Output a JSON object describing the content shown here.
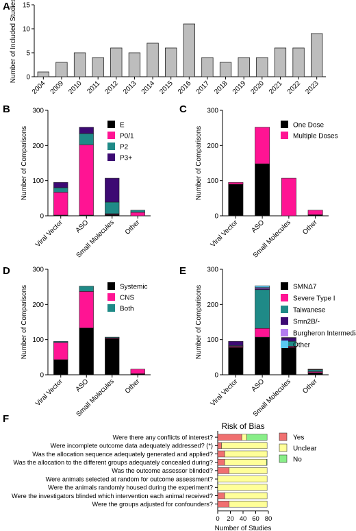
{
  "colors": {
    "grey": "#bdbdbd",
    "black": "#000000",
    "pink": "#ff1493",
    "teal": "#1f8a87",
    "indigo": "#3d0a73",
    "lavender": "#b37cf0",
    "skyblue": "#5ac8f0",
    "salmon": "#f07070",
    "yellow": "#ffff99",
    "lightgreen": "#88ee88"
  },
  "chart_data": [
    {
      "panel": "A",
      "type": "bar",
      "ylabel": "Number of Included Studies",
      "xlabel": "",
      "ylim": [
        0,
        15
      ],
      "yticks": [
        0,
        5,
        10,
        15
      ],
      "categories": [
        "2004",
        "2009",
        "2010",
        "2011",
        "2012",
        "2013",
        "2014",
        "2015",
        "2016",
        "2017",
        "2018",
        "2019",
        "2020",
        "2021",
        "2022",
        "2023"
      ],
      "values": [
        1,
        3,
        5,
        4,
        6,
        5,
        7,
        6,
        11,
        4,
        3,
        4,
        4,
        6,
        6,
        9
      ]
    },
    {
      "panel": "B",
      "type": "bar",
      "stacked": true,
      "ylabel": "Number of Comparisons",
      "ylim": [
        0,
        300
      ],
      "yticks": [
        0,
        100,
        200,
        300
      ],
      "categories": [
        "Viral Vector",
        "ASO",
        "Small Molecules",
        "Other"
      ],
      "series": [
        {
          "name": "E",
          "color": "#000000",
          "values": [
            2,
            2,
            4,
            0
          ]
        },
        {
          "name": "P0/1",
          "color": "#ff1493",
          "values": [
            65,
            200,
            2,
            10
          ]
        },
        {
          "name": "P2",
          "color": "#1f8a87",
          "values": [
            13,
            32,
            33,
            6
          ]
        },
        {
          "name": "P3+",
          "color": "#3d0a73",
          "values": [
            15,
            18,
            68,
            0
          ]
        }
      ],
      "legend": "top-right"
    },
    {
      "panel": "C",
      "type": "bar",
      "stacked": true,
      "ylabel": "Number of Comparisons",
      "ylim": [
        0,
        300
      ],
      "yticks": [
        0,
        100,
        200,
        300
      ],
      "categories": [
        "Viral Vector",
        "ASO",
        "Small Molecules",
        "Other"
      ],
      "series": [
        {
          "name": "One Dose",
          "color": "#000000",
          "values": [
            90,
            148,
            0,
            3
          ]
        },
        {
          "name": "Multiple Doses",
          "color": "#ff1493",
          "values": [
            5,
            104,
            107,
            13
          ]
        }
      ],
      "legend": "top-right"
    },
    {
      "panel": "D",
      "type": "bar",
      "stacked": true,
      "ylabel": "Number of Comparisons",
      "ylim": [
        0,
        300
      ],
      "yticks": [
        0,
        100,
        200,
        300
      ],
      "categories": [
        "Viral Vector",
        "ASO",
        "Small Molecules",
        "Other"
      ],
      "series": [
        {
          "name": "Systemic",
          "color": "#000000",
          "values": [
            43,
            133,
            103,
            3
          ]
        },
        {
          "name": "CNS",
          "color": "#ff1493",
          "values": [
            49,
            104,
            2,
            13
          ]
        },
        {
          "name": "Both",
          "color": "#1f8a87",
          "values": [
            3,
            15,
            2,
            0
          ]
        }
      ],
      "legend": "top-right"
    },
    {
      "panel": "E",
      "type": "bar",
      "stacked": true,
      "ylabel": "Number of Comparisons",
      "ylim": [
        0,
        300
      ],
      "yticks": [
        0,
        100,
        200,
        300
      ],
      "categories": [
        "Viral Vector",
        "ASO",
        "Small Molecules",
        "Other"
      ],
      "series": [
        {
          "name": "SMNΔ7",
          "color": "#000000",
          "values": [
            78,
            107,
            78,
            6
          ]
        },
        {
          "name": "Severe Type I",
          "color": "#ff1493",
          "values": [
            3,
            25,
            3,
            3
          ]
        },
        {
          "name": "Taiwanese",
          "color": "#1f8a87",
          "values": [
            2,
            110,
            14,
            5
          ]
        },
        {
          "name": "Smn2B/-",
          "color": "#3d0a73",
          "values": [
            12,
            3,
            10,
            1
          ]
        },
        {
          "name": "Burgheron Intermediate",
          "color": "#b37cf0",
          "values": [
            0,
            3,
            1,
            0
          ]
        },
        {
          "name": "Other",
          "color": "#5ac8f0",
          "values": [
            0,
            5,
            0,
            1
          ]
        }
      ],
      "legend": "top-right"
    },
    {
      "panel": "F",
      "type": "bar",
      "orientation": "horizontal",
      "stacked": true,
      "title": "Risk of Bias",
      "xlabel": "Number of Studies",
      "xlim": [
        0,
        80
      ],
      "xticks": [
        0,
        20,
        40,
        60,
        80
      ],
      "categories": [
        "Were there any conflicts of interest?",
        "Were incomplete outcome data adequately addressed? (*)",
        "Was the allocation sequence adequately generated and applied?",
        "Was the allocation to the different groups adequately concealed during?",
        "Was the outcome assessor blinded?",
        "Were animals selected at random for outcome assessment?",
        "Were the animals randomly housed during the experiment?",
        "Were the investigators blinded which intervention each animal received?",
        "Were the groups adjusted for confounders?"
      ],
      "series": [
        {
          "name": "Yes",
          "color": "#f07070",
          "values": [
            38,
            6,
            11,
            11,
            18,
            0,
            0,
            11,
            18
          ]
        },
        {
          "name": "Unclear",
          "color": "#ffff99",
          "values": [
            8,
            72,
            67,
            66,
            60,
            78,
            78,
            67,
            60
          ]
        },
        {
          "name": "No",
          "color": "#88ee88",
          "values": [
            32,
            0,
            0,
            1,
            0,
            0,
            0,
            0,
            0
          ]
        }
      ],
      "legend": "right"
    }
  ],
  "panel_letters": [
    "A",
    "B",
    "C",
    "D",
    "E",
    "F"
  ]
}
